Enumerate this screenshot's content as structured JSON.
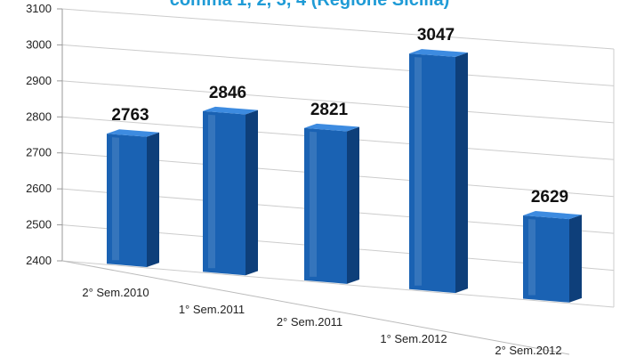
{
  "chart_data": {
    "type": "bar",
    "title": "comma 1, 2, 3, 4 (Regione Sicilia)",
    "categories": [
      "2° Sem.2010",
      "1° Sem.2011",
      "2° Sem.2011",
      "1° Sem.2012",
      "2° Sem.2012"
    ],
    "values": [
      2763,
      2846,
      2821,
      3047,
      2629
    ],
    "value_labels": [
      "2763",
      "2846",
      "2821",
      "3047",
      "2629"
    ],
    "ylim": [
      2400,
      3100
    ],
    "yticks": [
      "2400",
      "2500",
      "2600",
      "2700",
      "2800",
      "2900",
      "3000",
      "3100"
    ],
    "grid": true,
    "legend": "none",
    "colors": {
      "bar_front": "#1a62b3",
      "bar_side": "#0e3f7a",
      "bar_top": "#3d8be0",
      "highlight_label": "#e8281b",
      "default_label": "#111111",
      "grid": "#cccccc"
    },
    "highlight_index": 4
  }
}
